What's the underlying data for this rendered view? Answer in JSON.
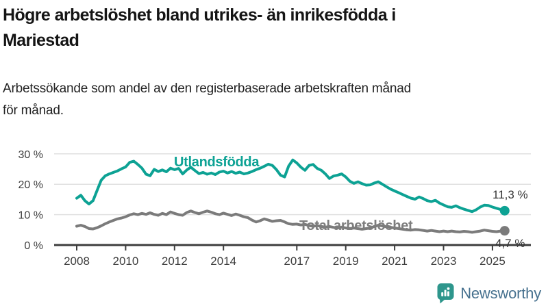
{
  "header": {
    "title_line1": "Högre arbetslöshet bland utrikes- än inrikesfödda i",
    "title_line2": "Mariestad",
    "subtitle_line1": "Arbetssökande som andel av den registerbaserade arbetskraften månad",
    "subtitle_line2": "för månad."
  },
  "colors": {
    "foreign_born_line": "#0da294",
    "total_line": "#7b7b7b",
    "gridline": "#e0e0e0",
    "axis": "#3d3d3d",
    "tick_label": "#3d3d3d",
    "annotation_text": "#333333",
    "brand_text": "#45708e",
    "brand_icon": "#2e968c"
  },
  "chart_data": {
    "type": "line",
    "title": "Högre arbetslöshet bland utrikes- än inrikesfödda i Mariestad",
    "subtitle": "Arbetssökande som andel av den registerbaserade arbetskraften månad för månad.",
    "xlabel": "",
    "ylabel": "",
    "xlim": [
      2007.9,
      2025.8
    ],
    "ylim": [
      0,
      30
    ],
    "grid": "horizontal",
    "legend_position": "inline-labels",
    "y_ticks": [
      {
        "value": 0,
        "label": "0 %"
      },
      {
        "value": 10,
        "label": "10 %"
      },
      {
        "value": 20,
        "label": "20 %"
      },
      {
        "value": 30,
        "label": "30 %"
      }
    ],
    "x_ticks": [
      {
        "value": 2008,
        "label": "2008"
      },
      {
        "value": 2010,
        "label": "2010"
      },
      {
        "value": 2012,
        "label": "2012"
      },
      {
        "value": 2014,
        "label": "2014"
      },
      {
        "value": 2017,
        "label": "2017"
      },
      {
        "value": 2019,
        "label": "2019"
      },
      {
        "value": 2021,
        "label": "2021"
      },
      {
        "value": 2023,
        "label": "2023"
      },
      {
        "value": 2025,
        "label": "2025"
      }
    ],
    "series": [
      {
        "name": "Utlandsfödda",
        "color": "#0da294",
        "end_label": "11,3 %",
        "end_value": 11.3,
        "x0": 2008.0,
        "dx": 0.16667,
        "values": [
          15.4,
          16.4,
          14.6,
          13.5,
          14.6,
          18.0,
          21.3,
          22.8,
          23.4,
          23.9,
          24.4,
          25.1,
          25.7,
          27.2,
          27.6,
          26.5,
          25.3,
          23.3,
          22.8,
          24.9,
          24.2,
          24.7,
          24.1,
          25.3,
          24.8,
          25.2,
          23.4,
          24.7,
          25.6,
          24.5,
          23.5,
          23.9,
          23.3,
          23.7,
          23.2,
          24.0,
          24.3,
          23.7,
          24.2,
          23.6,
          24.0,
          23.4,
          23.7,
          24.2,
          24.8,
          25.3,
          25.9,
          26.6,
          26.2,
          24.8,
          23.0,
          22.4,
          26.0,
          28.0,
          27.0,
          25.6,
          24.6,
          26.2,
          26.5,
          25.2,
          24.6,
          23.4,
          21.9,
          22.7,
          23.0,
          23.4,
          22.4,
          21.0,
          20.3,
          20.8,
          20.2,
          19.7,
          19.8,
          20.4,
          20.8,
          20.0,
          19.2,
          18.4,
          17.8,
          17.2,
          16.6,
          16.0,
          15.4,
          15.1,
          15.8,
          15.3,
          14.6,
          14.3,
          14.7,
          13.8,
          13.2,
          12.6,
          12.4,
          12.9,
          12.3,
          11.8,
          11.4,
          11.0,
          11.6,
          12.5,
          13.1,
          13.0,
          12.5,
          12.1,
          11.7,
          11.3
        ]
      },
      {
        "name": "Total arbetslöshet",
        "color": "#7b7b7b",
        "end_label": "4,7 %",
        "end_value": 4.7,
        "x0": 2008.0,
        "dx": 0.16667,
        "values": [
          6.2,
          6.5,
          6.1,
          5.4,
          5.3,
          5.7,
          6.3,
          7.0,
          7.6,
          8.1,
          8.6,
          8.9,
          9.3,
          9.9,
          10.3,
          10.0,
          10.4,
          10.1,
          10.6,
          10.1,
          9.8,
          10.4,
          10.0,
          10.9,
          10.4,
          10.0,
          9.8,
          10.7,
          11.2,
          10.7,
          10.3,
          10.8,
          11.2,
          10.8,
          10.3,
          10.0,
          10.5,
          10.1,
          9.7,
          10.2,
          9.8,
          9.3,
          9.0,
          8.2,
          7.6,
          8.0,
          8.6,
          8.2,
          7.8,
          8.0,
          8.1,
          7.6,
          7.0,
          6.8,
          6.9,
          6.6,
          6.8,
          6.4,
          6.2,
          6.4,
          6.1,
          5.9,
          6.1,
          5.8,
          5.6,
          5.9,
          5.6,
          5.4,
          5.6,
          5.4,
          5.2,
          5.4,
          5.6,
          6.1,
          6.5,
          6.3,
          6.0,
          5.8,
          5.6,
          5.4,
          5.2,
          5.0,
          4.9,
          5.1,
          5.0,
          4.8,
          4.6,
          4.8,
          4.6,
          4.4,
          4.6,
          4.4,
          4.6,
          4.4,
          4.3,
          4.5,
          4.4,
          4.2,
          4.4,
          4.6,
          4.9,
          4.7,
          4.5,
          4.4,
          4.6,
          4.7
        ]
      }
    ]
  },
  "footer": {
    "brand": "Newsworthy",
    "icon": "bar-chart-speech-bubble-icon"
  }
}
